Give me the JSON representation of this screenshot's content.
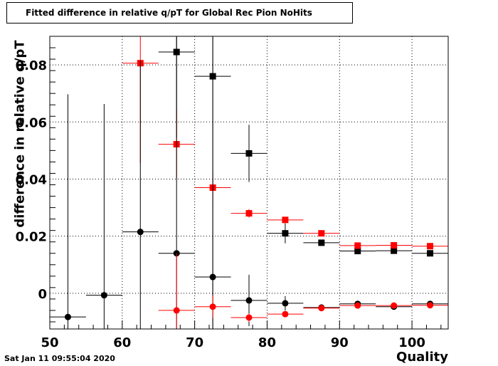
{
  "chart_data": {
    "type": "scatter",
    "title": "Fitted difference in relative q/pT for Global Rec Pion NoHits",
    "xlabel": "Quality",
    "ylabel": "difference in relative q/pT",
    "xlim": [
      50,
      105
    ],
    "ylim": [
      -0.0125,
      0.09
    ],
    "x_ticks": [
      50,
      60,
      70,
      80,
      90,
      100
    ],
    "y_ticks": [
      0,
      0.02,
      0.04,
      0.06,
      0.08
    ],
    "x_tick_labels": [
      "50",
      "60",
      "70",
      "80",
      "90",
      "100"
    ],
    "y_tick_labels": [
      "0",
      "0.02",
      "0.04",
      "0.06",
      "0.08"
    ],
    "grid": true,
    "series": [
      {
        "marker": "square",
        "color": "#000000",
        "points": [
          {
            "x": 67.5,
            "y": 0.0845,
            "xerr": 2.5,
            "yerr": 0.03
          },
          {
            "x": 72.5,
            "y": 0.076,
            "xerr": 2.5,
            "yerr": 0.09
          },
          {
            "x": 77.5,
            "y": 0.049,
            "xerr": 2.5,
            "yerr": 0.01
          },
          {
            "x": 82.5,
            "y": 0.021,
            "xerr": 2.5,
            "yerr": 0.0035
          },
          {
            "x": 87.5,
            "y": 0.0177,
            "xerr": 2.5,
            "yerr": 0.001
          },
          {
            "x": 92.5,
            "y": 0.0148,
            "xerr": 2.5,
            "yerr": 0.0008
          },
          {
            "x": 97.5,
            "y": 0.0149,
            "xerr": 2.5,
            "yerr": 0.0008
          },
          {
            "x": 102.5,
            "y": 0.014,
            "xerr": 2.5,
            "yerr": 0.0008
          }
        ]
      },
      {
        "marker": "square",
        "color": "#ff0000",
        "points": [
          {
            "x": 62.5,
            "y": 0.0806,
            "xerr": 2.5,
            "yerr": 0.035
          },
          {
            "x": 67.5,
            "y": 0.0522,
            "xerr": 2.5,
            "yerr": 0.012
          },
          {
            "x": 72.5,
            "y": 0.037,
            "xerr": 2.5,
            "yerr": 0.005
          },
          {
            "x": 77.5,
            "y": 0.028,
            "xerr": 2.5,
            "yerr": 0.0015
          },
          {
            "x": 82.5,
            "y": 0.0257,
            "xerr": 2.5,
            "yerr": 0.001
          },
          {
            "x": 87.5,
            "y": 0.021,
            "xerr": 2.5,
            "yerr": 0.0008
          },
          {
            "x": 92.5,
            "y": 0.0167,
            "xerr": 2.5,
            "yerr": 0.0006
          },
          {
            "x": 97.5,
            "y": 0.0168,
            "xerr": 2.5,
            "yerr": 0.0006
          },
          {
            "x": 102.5,
            "y": 0.0165,
            "xerr": 2.5,
            "yerr": 0.0006
          }
        ]
      },
      {
        "marker": "circle",
        "color": "#000000",
        "points": [
          {
            "x": 52.5,
            "y": -0.0083,
            "xerr": 2.5,
            "yerr": 0.078
          },
          {
            "x": 57.5,
            "y": -0.0007,
            "xerr": 2.5,
            "yerr": 0.067
          },
          {
            "x": 62.5,
            "y": 0.0215,
            "xerr": 2.5,
            "yerr": 0.06
          },
          {
            "x": 67.5,
            "y": 0.014,
            "xerr": 2.5,
            "yerr": 0.08
          },
          {
            "x": 72.5,
            "y": 0.0057,
            "xerr": 2.5,
            "yerr": 0.09
          },
          {
            "x": 77.5,
            "y": -0.0025,
            "xerr": 2.5,
            "yerr": 0.009
          },
          {
            "x": 82.5,
            "y": -0.0035,
            "xerr": 2.5,
            "yerr": 0.0025
          },
          {
            "x": 87.5,
            "y": -0.005,
            "xerr": 2.5,
            "yerr": 0.001
          },
          {
            "x": 92.5,
            "y": -0.0037,
            "xerr": 2.5,
            "yerr": 0.0008
          },
          {
            "x": 97.5,
            "y": -0.0047,
            "xerr": 2.5,
            "yerr": 0.0008
          },
          {
            "x": 102.5,
            "y": -0.0037,
            "xerr": 2.5,
            "yerr": 0.0008
          }
        ]
      },
      {
        "marker": "circle",
        "color": "#ff0000",
        "points": [
          {
            "x": 67.5,
            "y": -0.006,
            "xerr": 2.5,
            "yerr": 0.02
          },
          {
            "x": 72.5,
            "y": -0.0047,
            "xerr": 2.5,
            "yerr": 0.004
          },
          {
            "x": 77.5,
            "y": -0.0085,
            "xerr": 2.5,
            "yerr": 0.0015
          },
          {
            "x": 82.5,
            "y": -0.0073,
            "xerr": 2.5,
            "yerr": 0.001
          },
          {
            "x": 87.5,
            "y": -0.0052,
            "xerr": 2.5,
            "yerr": 0.0008
          },
          {
            "x": 92.5,
            "y": -0.0043,
            "xerr": 2.5,
            "yerr": 0.0006
          },
          {
            "x": 97.5,
            "y": -0.0043,
            "xerr": 2.5,
            "yerr": 0.0006
          },
          {
            "x": 102.5,
            "y": -0.0042,
            "xerr": 2.5,
            "yerr": 0.0006
          }
        ]
      }
    ]
  },
  "footer": {
    "timestamp": "Sat Jan 11 09:55:04 2020"
  }
}
